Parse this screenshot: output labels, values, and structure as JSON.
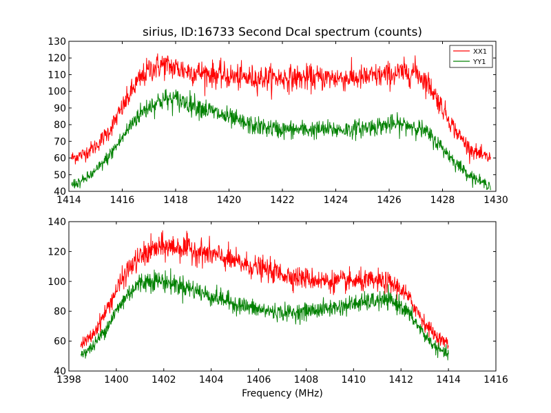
{
  "chart_data": [
    {
      "type": "line",
      "title": "sirius, ID:16733 Second Dcal spectrum (counts)",
      "xlabel": "",
      "ylabel": "",
      "xlim": [
        1414,
        1430
      ],
      "ylim": [
        40,
        130
      ],
      "xticks": [
        1414,
        1416,
        1418,
        1420,
        1422,
        1424,
        1426,
        1428,
        1430
      ],
      "yticks": [
        40,
        50,
        60,
        70,
        80,
        90,
        100,
        110,
        120,
        130
      ],
      "legend": {
        "position": "top-right",
        "entries": [
          "XX1",
          "YY1"
        ]
      },
      "series": [
        {
          "name": "XX1",
          "color": "#ff0000",
          "x": [
            1414.1,
            1414.5,
            1415.0,
            1415.5,
            1416.0,
            1416.5,
            1417.0,
            1417.5,
            1418.0,
            1418.5,
            1419.0,
            1419.5,
            1420.0,
            1420.5,
            1421.0,
            1421.5,
            1422.0,
            1422.5,
            1423.0,
            1423.5,
            1424.0,
            1424.5,
            1425.0,
            1425.5,
            1426.0,
            1426.5,
            1427.0,
            1427.5,
            1428.0,
            1428.5,
            1429.0,
            1429.5,
            1429.8
          ],
          "y": [
            60,
            62,
            67,
            76,
            90,
            104,
            113,
            116,
            114,
            112,
            111,
            110,
            109,
            108,
            108,
            108,
            108,
            108,
            108,
            108,
            108,
            108,
            108,
            109,
            110,
            111,
            112,
            104,
            90,
            76,
            66,
            61,
            60
          ]
        },
        {
          "name": "YY1",
          "color": "#008000",
          "x": [
            1414.1,
            1414.5,
            1415.0,
            1415.5,
            1416.0,
            1416.5,
            1417.0,
            1417.5,
            1418.0,
            1418.5,
            1419.0,
            1419.5,
            1420.0,
            1420.5,
            1421.0,
            1421.5,
            1422.0,
            1422.5,
            1423.0,
            1423.5,
            1424.0,
            1424.5,
            1425.0,
            1425.5,
            1426.0,
            1426.5,
            1427.0,
            1427.5,
            1428.0,
            1428.5,
            1429.0,
            1429.5,
            1429.8
          ],
          "y": [
            44,
            46,
            52,
            61,
            72,
            84,
            91,
            95,
            95,
            93,
            90,
            87,
            84,
            81,
            79,
            78,
            77,
            77,
            77,
            77,
            77,
            77,
            78,
            79,
            80,
            80,
            79,
            74,
            66,
            57,
            50,
            45,
            44
          ]
        }
      ]
    },
    {
      "type": "line",
      "title": "",
      "xlabel": "Frequency (MHz)",
      "ylabel": "",
      "xlim": [
        1398,
        1416
      ],
      "ylim": [
        40,
        140
      ],
      "xticks": [
        1398,
        1400,
        1402,
        1404,
        1406,
        1408,
        1410,
        1412,
        1414,
        1416
      ],
      "yticks": [
        40,
        60,
        80,
        100,
        120,
        140
      ],
      "series": [
        {
          "name": "XX1",
          "color": "#ff0000",
          "x": [
            1398.5,
            1399.0,
            1399.5,
            1400.0,
            1400.5,
            1401.0,
            1401.5,
            1402.0,
            1402.5,
            1403.0,
            1403.5,
            1404.0,
            1404.5,
            1405.0,
            1405.5,
            1406.0,
            1406.5,
            1407.0,
            1407.5,
            1408.0,
            1408.5,
            1409.0,
            1409.5,
            1410.0,
            1410.5,
            1411.0,
            1411.5,
            1412.0,
            1412.5,
            1413.0,
            1413.5,
            1414.0
          ],
          "y": [
            57,
            64,
            78,
            94,
            108,
            116,
            121,
            123,
            123,
            122,
            120,
            118,
            116,
            113,
            111,
            109,
            107,
            105,
            103,
            102,
            101,
            100,
            100,
            100,
            100,
            100,
            99,
            95,
            85,
            72,
            63,
            58
          ]
        },
        {
          "name": "YY1",
          "color": "#008000",
          "x": [
            1398.5,
            1399.0,
            1399.5,
            1400.0,
            1400.5,
            1401.0,
            1401.5,
            1402.0,
            1402.5,
            1403.0,
            1403.5,
            1404.0,
            1404.5,
            1405.0,
            1405.5,
            1406.0,
            1406.5,
            1407.0,
            1407.5,
            1408.0,
            1408.5,
            1409.0,
            1409.5,
            1410.0,
            1410.5,
            1411.0,
            1411.5,
            1412.0,
            1412.5,
            1413.0,
            1413.5,
            1414.0
          ],
          "y": [
            51,
            56,
            67,
            80,
            92,
            99,
            101,
            100,
            98,
            96,
            93,
            90,
            88,
            85,
            83,
            81,
            80,
            79,
            79,
            80,
            81,
            82,
            83,
            85,
            86,
            87,
            87,
            84,
            75,
            64,
            55,
            51
          ]
        }
      ]
    }
  ]
}
